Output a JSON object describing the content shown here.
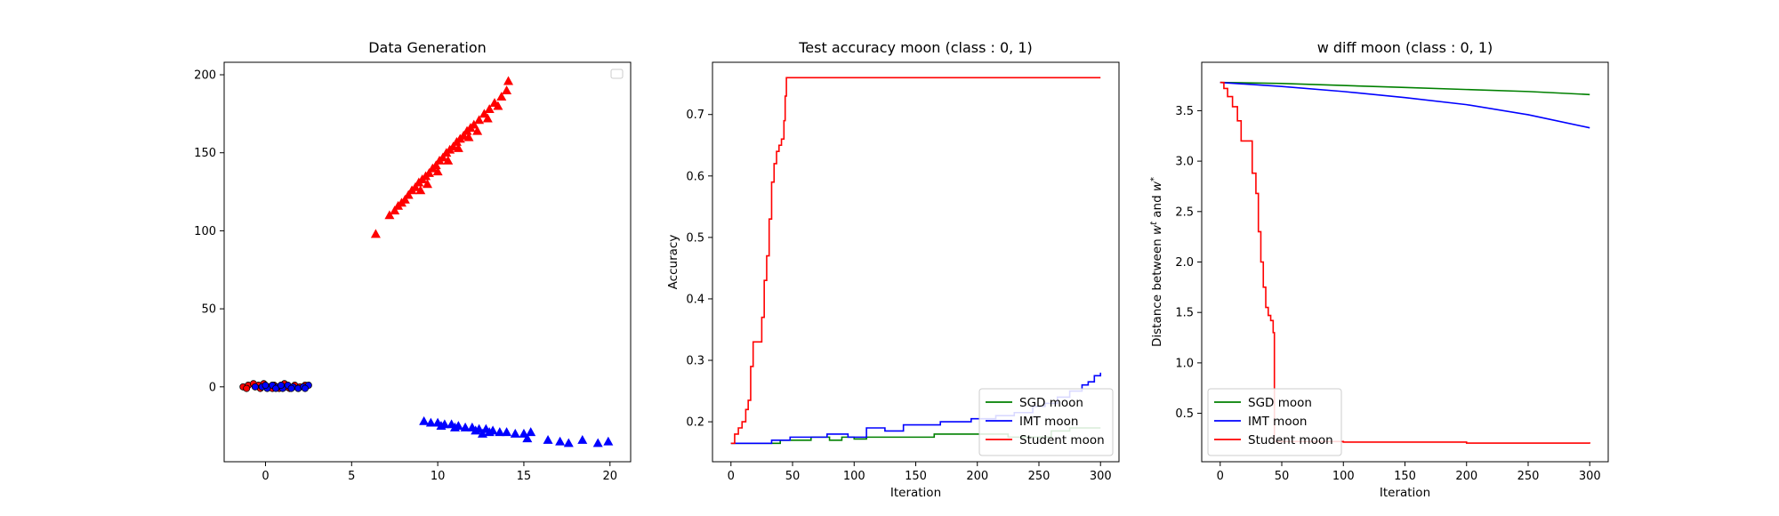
{
  "chart_data": [
    {
      "type": "scatter",
      "title": "Data Generation",
      "xlabel": "",
      "ylabel": "",
      "xlim": [
        -2.4,
        21.2
      ],
      "ylim": [
        -48,
        208
      ],
      "xticks": [
        0,
        5,
        10,
        15,
        20
      ],
      "yticks": [
        0,
        50,
        100,
        150,
        200
      ],
      "xtick_labels": [
        "0",
        "5",
        "10",
        "15",
        "20"
      ],
      "ytick_labels": [
        "0",
        "50",
        "100",
        "150",
        "200"
      ],
      "legend": {
        "position": "top-right",
        "entries": []
      },
      "series": [
        {
          "marker": "triangle",
          "color": "#ff0000",
          "points": [
            [
              6.4,
              98
            ],
            [
              7.2,
              110
            ],
            [
              7.5,
              113
            ],
            [
              7.7,
              116
            ],
            [
              7.9,
              118
            ],
            [
              8.1,
              120
            ],
            [
              8.3,
              123
            ],
            [
              8.5,
              126
            ],
            [
              8.7,
              128
            ],
            [
              8.9,
              131
            ],
            [
              9.1,
              133
            ],
            [
              9.3,
              135
            ],
            [
              9.5,
              137
            ],
            [
              9.7,
              140
            ],
            [
              9.9,
              142
            ],
            [
              10.1,
              145
            ],
            [
              10.3,
              147
            ],
            [
              10.5,
              150
            ],
            [
              10.7,
              152
            ],
            [
              10.9,
              154
            ],
            [
              11.1,
              157
            ],
            [
              11.3,
              159
            ],
            [
              11.5,
              161
            ],
            [
              11.7,
              164
            ],
            [
              11.9,
              166
            ],
            [
              12.1,
              168
            ],
            [
              12.4,
              171
            ],
            [
              12.7,
              175
            ],
            [
              13.0,
              178
            ],
            [
              13.3,
              182
            ],
            [
              13.7,
              186
            ],
            [
              14.0,
              190
            ],
            [
              14.1,
              196
            ],
            [
              9.0,
              126
            ],
            [
              9.4,
              130
            ],
            [
              10.0,
              138
            ],
            [
              10.6,
              145
            ],
            [
              11.2,
              153
            ],
            [
              11.8,
              160
            ],
            [
              12.3,
              164
            ],
            [
              12.9,
              172
            ],
            [
              13.5,
              180
            ]
          ]
        },
        {
          "marker": "triangle",
          "color": "#0000ff",
          "points": [
            [
              9.2,
              -22
            ],
            [
              9.6,
              -23
            ],
            [
              10.0,
              -23
            ],
            [
              10.4,
              -24
            ],
            [
              10.8,
              -24
            ],
            [
              11.2,
              -25
            ],
            [
              11.6,
              -26
            ],
            [
              12.0,
              -26
            ],
            [
              12.4,
              -27
            ],
            [
              12.8,
              -27
            ],
            [
              13.2,
              -28
            ],
            [
              13.6,
              -29
            ],
            [
              14.0,
              -29
            ],
            [
              14.5,
              -30
            ],
            [
              15.0,
              -30
            ],
            [
              15.4,
              -29
            ],
            [
              16.4,
              -34
            ],
            [
              17.1,
              -35
            ],
            [
              17.6,
              -36
            ],
            [
              18.4,
              -34
            ],
            [
              19.3,
              -36
            ],
            [
              19.9,
              -35
            ],
            [
              10.2,
              -25
            ],
            [
              11.0,
              -26
            ],
            [
              12.2,
              -28
            ],
            [
              13.0,
              -29
            ],
            [
              12.6,
              -30
            ],
            [
              15.2,
              -33
            ]
          ]
        },
        {
          "marker": "circle",
          "color": "#ff0000",
          "edge": "#000000",
          "points": [
            [
              -1.3,
              0
            ],
            [
              -1.0,
              1
            ],
            [
              -0.7,
              2
            ],
            [
              -0.4,
              1
            ],
            [
              -0.1,
              2
            ],
            [
              0.2,
              0
            ],
            [
              0.5,
              1
            ],
            [
              0.8,
              -1
            ],
            [
              1.1,
              2
            ],
            [
              1.4,
              -1
            ],
            [
              1.7,
              1
            ],
            [
              2.0,
              0
            ],
            [
              2.3,
              1
            ],
            [
              -1.1,
              -1
            ],
            [
              -0.3,
              -1
            ],
            [
              0.4,
              -1
            ],
            [
              1.2,
              0
            ],
            [
              1.9,
              -1
            ]
          ]
        },
        {
          "marker": "circle",
          "color": "#0000ff",
          "edge": "#000000",
          "points": [
            [
              -0.2,
              0
            ],
            [
              0.1,
              -1
            ],
            [
              0.4,
              1
            ],
            [
              0.7,
              0
            ],
            [
              1.0,
              -1
            ],
            [
              1.3,
              1
            ],
            [
              1.6,
              0
            ],
            [
              1.9,
              -1
            ],
            [
              2.2,
              0
            ],
            [
              2.5,
              1
            ],
            [
              0.0,
              1
            ],
            [
              0.6,
              -1
            ],
            [
              1.5,
              -1
            ],
            [
              2.3,
              -1
            ],
            [
              -0.6,
              0
            ],
            [
              0.9,
              1
            ]
          ]
        }
      ]
    },
    {
      "type": "line",
      "title": "Test accuracy moon (class : 0, 1)",
      "xlabel": "Iteration",
      "ylabel": "Accuracy",
      "xlim": [
        -15,
        315
      ],
      "ylim": [
        0.135,
        0.785
      ],
      "xticks": [
        0,
        50,
        100,
        150,
        200,
        250,
        300
      ],
      "yticks": [
        0.2,
        0.3,
        0.4,
        0.5,
        0.6,
        0.7
      ],
      "xtick_labels": [
        "0",
        "50",
        "100",
        "150",
        "200",
        "250",
        "300"
      ],
      "ytick_labels": [
        "0.2",
        "0.3",
        "0.4",
        "0.5",
        "0.6",
        "0.7"
      ],
      "legend": {
        "position": "lower-right",
        "entries": [
          "SGD moon",
          "IMT moon",
          "Student moon"
        ]
      },
      "series": [
        {
          "name": "SGD moon",
          "color": "#008000",
          "step": true,
          "points": [
            [
              0,
              0.165
            ],
            [
              30,
              0.165
            ],
            [
              40,
              0.17
            ],
            [
              55,
              0.17
            ],
            [
              65,
              0.175
            ],
            [
              80,
              0.17
            ],
            [
              90,
              0.175
            ],
            [
              100,
              0.172
            ],
            [
              110,
              0.175
            ],
            [
              160,
              0.175
            ],
            [
              165,
              0.18
            ],
            [
              215,
              0.18
            ],
            [
              220,
              0.18
            ],
            [
              225,
              0.175
            ],
            [
              260,
              0.185
            ],
            [
              275,
              0.19
            ],
            [
              300,
              0.19
            ]
          ]
        },
        {
          "name": "IMT moon",
          "color": "#0000ff",
          "step": true,
          "points": [
            [
              0,
              0.165
            ],
            [
              28,
              0.165
            ],
            [
              33,
              0.17
            ],
            [
              48,
              0.175
            ],
            [
              78,
              0.18
            ],
            [
              95,
              0.175
            ],
            [
              110,
              0.19
            ],
            [
              125,
              0.185
            ],
            [
              140,
              0.195
            ],
            [
              160,
              0.195
            ],
            [
              170,
              0.2
            ],
            [
              190,
              0.2
            ],
            [
              195,
              0.205
            ],
            [
              215,
              0.21
            ],
            [
              230,
              0.215
            ],
            [
              245,
              0.225
            ],
            [
              255,
              0.23
            ],
            [
              265,
              0.24
            ],
            [
              275,
              0.25
            ],
            [
              285,
              0.26
            ],
            [
              290,
              0.265
            ],
            [
              295,
              0.275
            ],
            [
              300,
              0.28
            ]
          ]
        },
        {
          "name": "Student moon",
          "color": "#ff0000",
          "step": true,
          "points": [
            [
              0,
              0.165
            ],
            [
              3,
              0.18
            ],
            [
              6,
              0.19
            ],
            [
              9,
              0.2
            ],
            [
              12,
              0.22
            ],
            [
              14,
              0.235
            ],
            [
              16,
              0.29
            ],
            [
              18,
              0.33
            ],
            [
              24,
              0.33
            ],
            [
              25,
              0.37
            ],
            [
              27,
              0.43
            ],
            [
              29,
              0.47
            ],
            [
              31,
              0.53
            ],
            [
              33,
              0.59
            ],
            [
              35,
              0.62
            ],
            [
              37,
              0.64
            ],
            [
              39,
              0.65
            ],
            [
              41,
              0.66
            ],
            [
              43,
              0.69
            ],
            [
              44,
              0.73
            ],
            [
              45,
              0.76
            ],
            [
              300,
              0.76
            ]
          ]
        }
      ]
    },
    {
      "type": "line",
      "title": "w diff moon (class : 0, 1)",
      "xlabel": "Iteration",
      "ylabel": "Distance between w^t and w^*",
      "ylabel_parts": {
        "prefix": "Distance between ",
        "w1": "w",
        "sup1": "t",
        "mid": " and ",
        "w2": "w",
        "sup2": "*"
      },
      "xlim": [
        -15,
        315
      ],
      "ylim": [
        0.02,
        3.98
      ],
      "xticks": [
        0,
        50,
        100,
        150,
        200,
        250,
        300
      ],
      "yticks": [
        0.5,
        1.0,
        1.5,
        2.0,
        2.5,
        3.0,
        3.5
      ],
      "xtick_labels": [
        "0",
        "50",
        "100",
        "150",
        "200",
        "250",
        "300"
      ],
      "ytick_labels": [
        "0.5",
        "1.0",
        "1.5",
        "2.0",
        "2.5",
        "3.0",
        "3.5"
      ],
      "legend": {
        "position": "lower-left",
        "entries": [
          "SGD moon",
          "IMT moon",
          "Student moon"
        ]
      },
      "series": [
        {
          "name": "SGD moon",
          "color": "#008000",
          "step": false,
          "points": [
            [
              0,
              3.78
            ],
            [
              50,
              3.77
            ],
            [
              100,
              3.75
            ],
            [
              150,
              3.73
            ],
            [
              200,
              3.71
            ],
            [
              250,
              3.69
            ],
            [
              300,
              3.66
            ]
          ]
        },
        {
          "name": "IMT moon",
          "color": "#0000ff",
          "step": false,
          "points": [
            [
              0,
              3.78
            ],
            [
              50,
              3.74
            ],
            [
              100,
              3.69
            ],
            [
              150,
              3.63
            ],
            [
              200,
              3.56
            ],
            [
              250,
              3.46
            ],
            [
              300,
              3.33
            ]
          ]
        },
        {
          "name": "Student moon",
          "color": "#ff0000",
          "step": true,
          "points": [
            [
              0,
              3.78
            ],
            [
              3,
              3.72
            ],
            [
              6,
              3.64
            ],
            [
              10,
              3.54
            ],
            [
              14,
              3.4
            ],
            [
              17,
              3.2
            ],
            [
              25,
              3.2
            ],
            [
              26,
              2.88
            ],
            [
              29,
              2.68
            ],
            [
              31,
              2.3
            ],
            [
              33,
              2.0
            ],
            [
              35,
              1.75
            ],
            [
              37,
              1.55
            ],
            [
              39,
              1.47
            ],
            [
              41,
              1.42
            ],
            [
              43,
              1.3
            ],
            [
              44,
              0.22
            ],
            [
              100,
              0.215
            ],
            [
              200,
              0.205
            ],
            [
              300,
              0.2
            ]
          ]
        }
      ]
    }
  ]
}
